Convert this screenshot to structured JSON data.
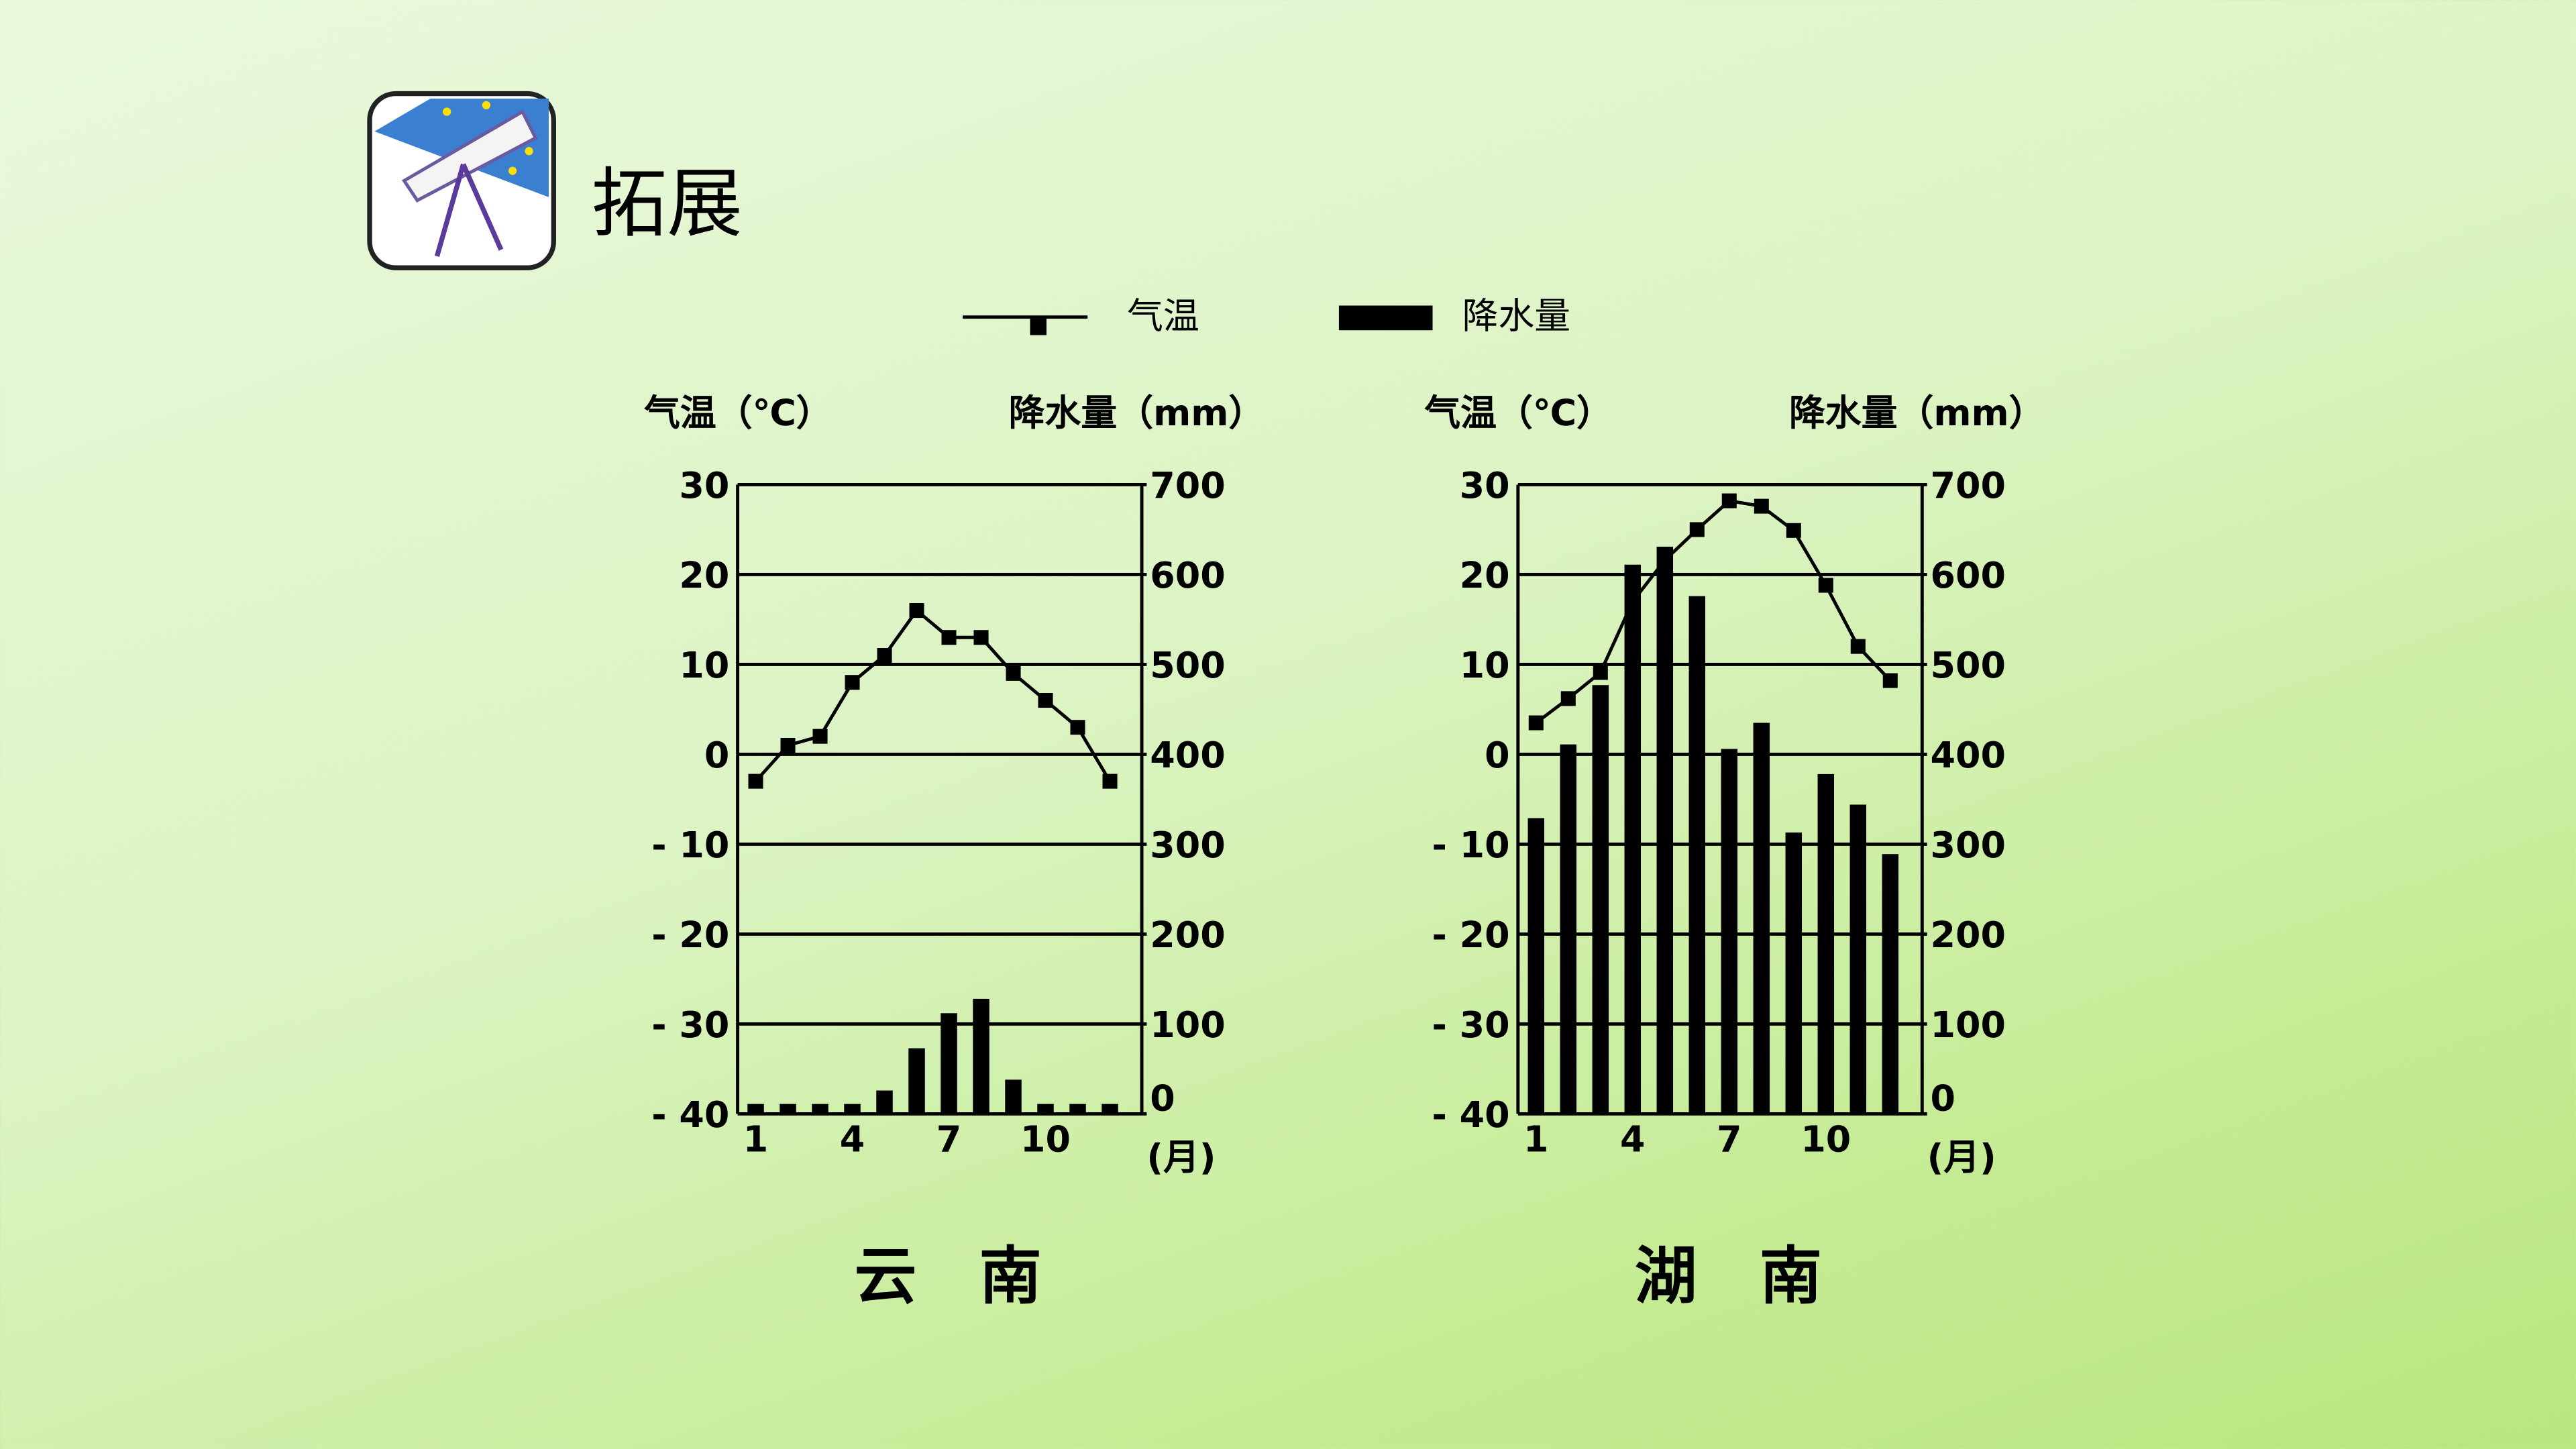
{
  "header": {
    "title": "拓展"
  },
  "chart_data": [
    {
      "type": "climate",
      "title": "云　南",
      "ylabel": "气温（℃）",
      "y2label": "降水量（mm）",
      "xlabel": "(月)",
      "categories": [
        "1",
        null,
        null,
        "4",
        null,
        null,
        "7",
        null,
        null,
        "10",
        null,
        null
      ],
      "ylim": [
        -40,
        30
      ],
      "yticks": [
        {
          "value": -40,
          "label": "- 40"
        },
        {
          "value": -30,
          "label": "- 30"
        },
        {
          "value": -20,
          "label": "- 20"
        },
        {
          "value": -10,
          "label": "- 10"
        },
        0,
        10,
        20,
        30
      ],
      "y2lim": [
        0,
        700
      ],
      "y2ticks": [
        0,
        100,
        200,
        300,
        400,
        500,
        600,
        700
      ],
      "grid": true,
      "series": [
        {
          "name": "气温",
          "type": "line",
          "color": "#000000",
          "values": [
            -3,
            1,
            2,
            8,
            11,
            16,
            13,
            13,
            9,
            6,
            3,
            -3
          ]
        },
        {
          "name": "降水量",
          "type": "bar",
          "axis": "y2",
          "color": "#000000",
          "values": [
            11,
            11,
            11,
            11,
            26,
            73,
            112,
            128,
            38,
            11,
            11,
            11
          ]
        }
      ]
    },
    {
      "type": "climate",
      "title": "湖　南",
      "ylabel": "气温（℃）",
      "y2label": "降水量（mm）",
      "xlabel": "(月)",
      "categories": [
        "1",
        null,
        null,
        "4",
        null,
        null,
        "7",
        null,
        null,
        "10",
        null,
        null
      ],
      "ylim": [
        -40,
        30
      ],
      "yticks": [
        {
          "value": -40,
          "label": "- 40"
        },
        {
          "value": -30,
          "label": "- 30"
        },
        {
          "value": -20,
          "label": "- 20"
        },
        {
          "value": -10,
          "label": "- 10"
        },
        0,
        10,
        20,
        30
      ],
      "y2lim": [
        0,
        700
      ],
      "y2ticks": [
        0,
        100,
        200,
        300,
        400,
        500,
        600,
        700
      ],
      "grid": true,
      "series": [
        {
          "type": "line",
          "color": "#000000",
          "values": [
            3.5,
            6.2,
            9.1,
            17,
            21.6,
            25,
            28.2,
            27.6,
            24.9,
            18.8,
            12,
            8.2
          ]
        },
        {
          "type": "bar",
          "axis": "y2",
          "color": "#000000",
          "values": [
            329,
            411,
            477,
            611,
            631,
            576,
            406,
            435,
            313,
            378,
            344,
            289
          ]
        }
      ]
    }
  ]
}
